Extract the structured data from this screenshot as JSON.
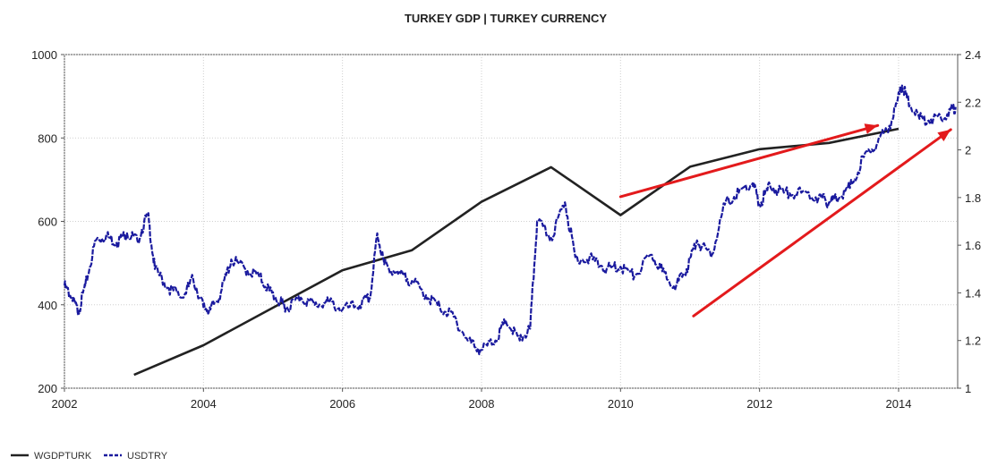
{
  "chart_data": {
    "type": "line",
    "title": "TURKEY GDP |  TURKEY CURRENCY",
    "xlabel": "",
    "ylabel": "",
    "x_ticks": [
      "2002",
      "2004",
      "2006",
      "2008",
      "2010",
      "2012",
      "2014"
    ],
    "xlim": [
      2002,
      2014.85
    ],
    "y_left": {
      "lim": [
        200,
        1000
      ],
      "ticks": [
        "200",
        "400",
        "600",
        "800",
        "1000"
      ]
    },
    "y_right": {
      "lim": [
        1,
        2.4
      ],
      "ticks": [
        "1",
        "1.2",
        "1.4",
        "1.6",
        "1.8",
        "2",
        "2.2",
        "2.4"
      ]
    },
    "grid": true,
    "legend_position": "bottom-left",
    "series": [
      {
        "name": "WGDPTURK",
        "axis": "left",
        "color": "#222222",
        "style": "solid",
        "x": [
          2003,
          2004,
          2005,
          2006,
          2007,
          2008,
          2009,
          2010,
          2011,
          2012,
          2013,
          2014
        ],
        "values": [
          232,
          303,
          393,
          483,
          531,
          647,
          730,
          615,
          731,
          773,
          788,
          822
        ]
      },
      {
        "name": "USDTRY",
        "axis": "right",
        "color": "#1a1a9e",
        "style": "dashed",
        "x": [
          2002.0,
          2002.1,
          2002.2,
          2002.3,
          2002.45,
          2002.6,
          2002.75,
          2002.9,
          2003.05,
          2003.2,
          2003.3,
          2003.5,
          2003.7,
          2003.85,
          2004.0,
          2004.1,
          2004.25,
          2004.4,
          2004.6,
          2004.8,
          2004.95,
          2005.1,
          2005.2,
          2005.4,
          2005.6,
          2005.8,
          2006.0,
          2006.25,
          2006.4,
          2006.5,
          2006.6,
          2006.8,
          2007.0,
          2007.2,
          2007.4,
          2007.6,
          2007.8,
          2008.0,
          2008.2,
          2008.35,
          2008.55,
          2008.7,
          2008.8,
          2009.0,
          2009.2,
          2009.35,
          2009.6,
          2009.8,
          2010.0,
          2010.2,
          2010.45,
          2010.6,
          2010.8,
          2010.95,
          2011.1,
          2011.3,
          2011.5,
          2011.7,
          2011.9,
          2012.0,
          2012.15,
          2012.35,
          2012.6,
          2012.85,
          2013.0,
          2013.1,
          2013.3,
          2013.5,
          2013.7,
          2013.9,
          2014.05,
          2014.12,
          2014.3,
          2014.5,
          2014.7,
          2014.82
        ],
        "values": [
          1.43,
          1.38,
          1.32,
          1.43,
          1.62,
          1.64,
          1.61,
          1.65,
          1.62,
          1.73,
          1.5,
          1.42,
          1.38,
          1.46,
          1.34,
          1.33,
          1.4,
          1.54,
          1.5,
          1.47,
          1.41,
          1.36,
          1.34,
          1.38,
          1.35,
          1.36,
          1.33,
          1.35,
          1.38,
          1.65,
          1.52,
          1.48,
          1.45,
          1.39,
          1.34,
          1.3,
          1.2,
          1.16,
          1.2,
          1.28,
          1.2,
          1.25,
          1.7,
          1.63,
          1.78,
          1.55,
          1.54,
          1.5,
          1.51,
          1.47,
          1.56,
          1.49,
          1.43,
          1.5,
          1.62,
          1.55,
          1.77,
          1.82,
          1.86,
          1.77,
          1.85,
          1.82,
          1.82,
          1.8,
          1.78,
          1.8,
          1.84,
          1.97,
          2.03,
          2.12,
          2.27,
          2.22,
          2.13,
          2.13,
          2.15,
          2.18
        ]
      }
    ],
    "annotations": [
      {
        "type": "arrow",
        "color": "#e31a1c",
        "from": {
          "x": 2010.0,
          "y": 659
        },
        "to": {
          "x": 2013.7,
          "y": 830
        }
      },
      {
        "type": "arrow",
        "color": "#e31a1c",
        "from": {
          "x": 2011.05,
          "y": 373
        },
        "to": {
          "x": 2014.75,
          "y": 820
        }
      }
    ]
  }
}
